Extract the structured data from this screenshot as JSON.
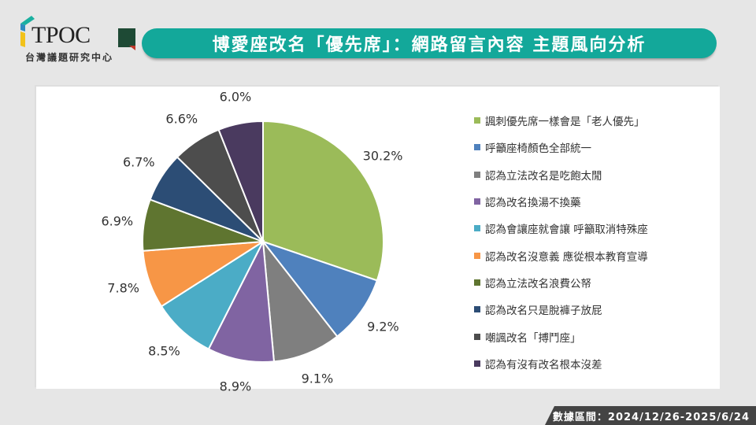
{
  "header": {
    "logo_text": "TPOC",
    "logo_subtitle": "台灣議題研究中心",
    "title": "博愛座改名「優先席」：網路留言內容  主題風向分析"
  },
  "footer": {
    "date_range": "數據區間：2024/12/26-2025/6/24"
  },
  "colors": {
    "background": "#e6e6e6",
    "title_bar": "#13a89a",
    "footer_bar": "#444444"
  },
  "chart_data": {
    "type": "pie",
    "title": "博愛座改名「優先席」：網路留言內容  主題風向分析",
    "start_angle": "12 o'clock, clockwise",
    "legend_position": "right",
    "categories": [
      "諷刺優先席一樣會是「老人優先」",
      "呼籲座椅顏色全部統一",
      "認為立法改名是吃飽太閒",
      "認為改名換湯不換藥",
      "認為會讓座就會讓 呼籲取消特殊座",
      "認為改名沒意義 應從根本教育宣導",
      "認為立法改名浪費公帑",
      "認為改名只是脫褲子放屁",
      "嘲諷改名「搏鬥座」",
      "認為有沒有改名根本沒差"
    ],
    "values": [
      30.2,
      9.2,
      9.1,
      8.9,
      8.5,
      7.8,
      6.9,
      6.7,
      6.6,
      6.0
    ],
    "labels": [
      "30.2%",
      "9.2%",
      "9.1%",
      "8.9%",
      "8.5%",
      "7.8%",
      "6.9%",
      "6.7%",
      "6.6%",
      "6.0%"
    ],
    "colors": [
      "#9bbb59",
      "#4f81bd",
      "#7f7f7f",
      "#8064a2",
      "#4bacc6",
      "#f79646",
      "#5f7530",
      "#2c4d75",
      "#4d4d4d",
      "#4a3a5f"
    ],
    "unit": "%"
  },
  "legend": {
    "items": [
      {
        "label": "諷刺優先席一樣會是「老人優先」",
        "color": "#9bbb59"
      },
      {
        "label": "呼籲座椅顏色全部統一",
        "color": "#4f81bd"
      },
      {
        "label": "認為立法改名是吃飽太閒",
        "color": "#7f7f7f"
      },
      {
        "label": "認為改名換湯不換藥",
        "color": "#8064a2"
      },
      {
        "label": "認為會讓座就會讓 呼籲取消特殊座",
        "color": "#4bacc6"
      },
      {
        "label": "認為改名沒意義 應從根本教育宣導",
        "color": "#f79646"
      },
      {
        "label": "認為立法改名浪費公帑",
        "color": "#5f7530"
      },
      {
        "label": "認為改名只是脫褲子放屁",
        "color": "#2c4d75"
      },
      {
        "label": "嘲諷改名「搏鬥座」",
        "color": "#4d4d4d"
      },
      {
        "label": "認為有沒有改名根本沒差",
        "color": "#4a3a5f"
      }
    ]
  }
}
